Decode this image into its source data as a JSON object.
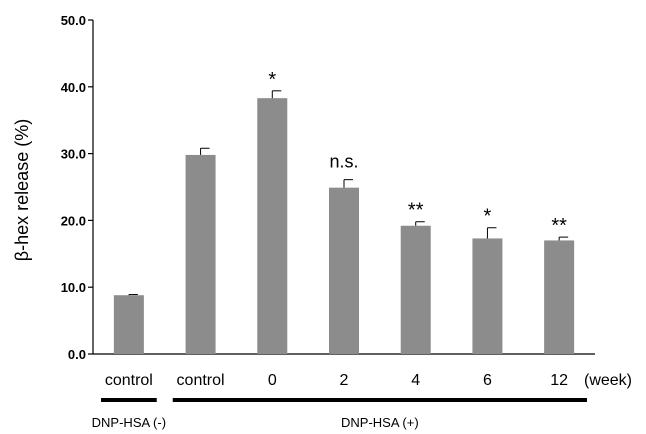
{
  "chart_data": {
    "type": "bar",
    "categories": [
      "control",
      "control",
      "0",
      "2",
      "4",
      "6",
      "12"
    ],
    "values": [
      8.8,
      29.8,
      38.3,
      24.9,
      19.2,
      17.3,
      17.0
    ],
    "errors": [
      0.1,
      1.0,
      1.1,
      1.2,
      0.6,
      1.6,
      0.5
    ],
    "annotations": [
      "",
      "",
      "*",
      "n.s.",
      "**",
      "*",
      "**"
    ],
    "xunit": "(week)",
    "ylabel": "β-hex release (%)",
    "ylim": [
      0,
      50
    ],
    "yticks": [
      "0.0",
      "10.0",
      "20.0",
      "30.0",
      "40.0",
      "50.0"
    ],
    "groups": [
      {
        "label": "DNP-HSA (-)",
        "from": 0,
        "to": 0
      },
      {
        "label": "DNP-HSA (+)",
        "from": 1,
        "to": 6
      }
    ],
    "bar_color": "#8c8c8c",
    "grid": false,
    "legend": "none"
  }
}
